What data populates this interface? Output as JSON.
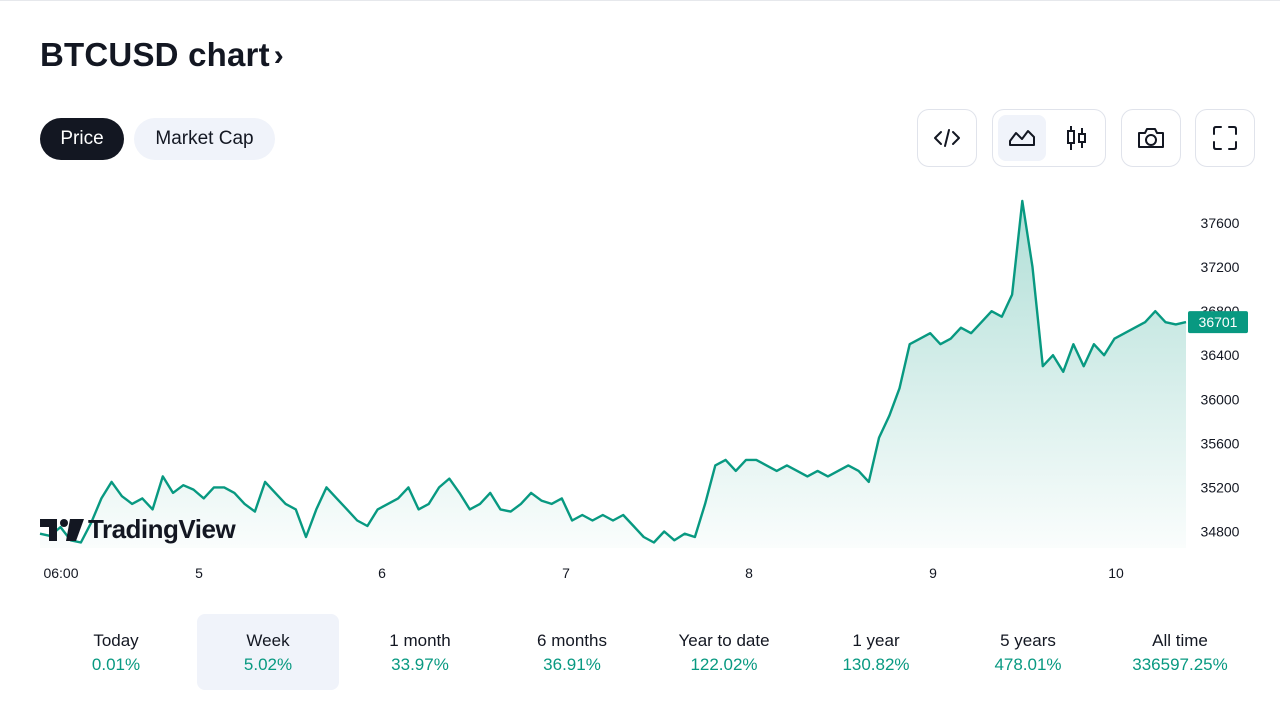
{
  "header": {
    "title": "BTCUSD chart",
    "chevron": "›"
  },
  "tabs": [
    {
      "label": "Price"
    },
    {
      "label": "Market Cap"
    }
  ],
  "toolbar": {
    "embed_icon": "code-icon",
    "area_icon": "area-chart-icon",
    "candle_icon": "candlestick-icon",
    "snapshot_icon": "camera-icon",
    "fullscreen_icon": "fullscreen-icon"
  },
  "watermark": "TradingView",
  "colors": {
    "line": "#089981",
    "accent_dark": "#131722",
    "positive": "#089981"
  },
  "chart_data": {
    "type": "area",
    "x_ticks": [
      "06:00",
      "5",
      "6",
      "7",
      "8",
      "9",
      "10"
    ],
    "y_ticks": [
      37600,
      37200,
      36800,
      36400,
      36000,
      35600,
      35200,
      34800
    ],
    "ylim": [
      34650,
      37900
    ],
    "last_price": "36701",
    "series": [
      {
        "values": [
          34780,
          34760,
          34840,
          34720,
          34700,
          34880,
          35100,
          35250,
          35120,
          35050,
          35100,
          35000,
          35300,
          35150,
          35220,
          35180,
          35100,
          35200,
          35200,
          35150,
          35050,
          34980,
          35250,
          35150,
          35050,
          35000,
          34750,
          35000,
          35200,
          35100,
          35000,
          34900,
          34850,
          35000,
          35050,
          35100,
          35200,
          35000,
          35050,
          35200,
          35280,
          35150,
          35000,
          35050,
          35150,
          35000,
          34980,
          35050,
          35150,
          35080,
          35050,
          35100,
          34900,
          34950,
          34900,
          34950,
          34900,
          34950,
          34850,
          34750,
          34700,
          34800,
          34720,
          34780,
          34750,
          35050,
          35400,
          35450,
          35350,
          35450,
          35450,
          35400,
          35350,
          35400,
          35350,
          35300,
          35350,
          35300,
          35350,
          35400,
          35350,
          35250,
          35650,
          35850,
          36100,
          36500,
          36550,
          36600,
          36500,
          36550,
          36650,
          36600,
          36700,
          36800,
          36750,
          36950,
          37800,
          37200,
          36300,
          36400,
          36250,
          36500,
          36300,
          36500,
          36400,
          36550,
          36600,
          36650,
          36700,
          36800,
          36700,
          36680,
          36701
        ]
      }
    ]
  },
  "periods": [
    {
      "label": "Today",
      "value": "0.01%"
    },
    {
      "label": "Week",
      "value": "5.02%"
    },
    {
      "label": "1 month",
      "value": "33.97%"
    },
    {
      "label": "6 months",
      "value": "36.91%"
    },
    {
      "label": "Year to date",
      "value": "122.02%"
    },
    {
      "label": "1 year",
      "value": "130.82%"
    },
    {
      "label": "5 years",
      "value": "478.01%"
    },
    {
      "label": "All time",
      "value": "336597.25%"
    }
  ]
}
